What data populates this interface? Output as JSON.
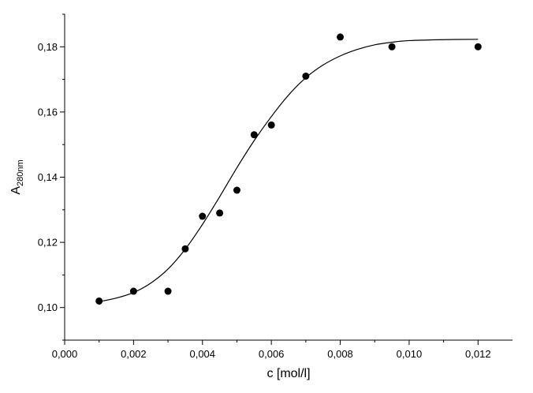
{
  "chart_data": {
    "type": "scatter",
    "xlabel": "c [mol/l]",
    "ylabel": {
      "main": "A",
      "sub": "280nm"
    },
    "xlim": [
      0.0,
      0.013
    ],
    "ylim": [
      0.09,
      0.19
    ],
    "x_ticks": [
      {
        "value": 0.0,
        "label": "0,000"
      },
      {
        "value": 0.002,
        "label": "0,002"
      },
      {
        "value": 0.004,
        "label": "0,004"
      },
      {
        "value": 0.006,
        "label": "0,006"
      },
      {
        "value": 0.008,
        "label": "0,008"
      },
      {
        "value": 0.01,
        "label": "0,010"
      },
      {
        "value": 0.012,
        "label": "0,012"
      }
    ],
    "y_ticks": [
      {
        "value": 0.1,
        "label": "0,10"
      },
      {
        "value": 0.12,
        "label": "0,12"
      },
      {
        "value": 0.14,
        "label": "0,14"
      },
      {
        "value": 0.16,
        "label": "0,16"
      },
      {
        "value": 0.18,
        "label": "0,18"
      }
    ],
    "grid": false,
    "series": [
      {
        "kind": "points",
        "color": "#000000",
        "x": [
          0.001,
          0.002,
          0.003,
          0.0035,
          0.004,
          0.0045,
          0.005,
          0.0055,
          0.006,
          0.007,
          0.008,
          0.0095,
          0.012
        ],
        "y": [
          0.102,
          0.105,
          0.105,
          0.118,
          0.128,
          0.129,
          0.136,
          0.153,
          0.156,
          0.171,
          0.183,
          0.18,
          0.18
        ]
      },
      {
        "kind": "fit_curve",
        "color": "#000000",
        "x": [
          0.001,
          0.0015,
          0.002,
          0.0025,
          0.003,
          0.0035,
          0.004,
          0.0045,
          0.005,
          0.0055,
          0.006,
          0.0065,
          0.007,
          0.0075,
          0.008,
          0.0085,
          0.009,
          0.0095,
          0.01,
          0.011,
          0.012
        ],
        "y": [
          0.1018,
          0.1029,
          0.1046,
          0.1075,
          0.1118,
          0.1179,
          0.1255,
          0.134,
          0.1429,
          0.1512,
          0.1586,
          0.1652,
          0.1705,
          0.1744,
          0.1772,
          0.1792,
          0.1806,
          0.1814,
          0.1819,
          0.1822,
          0.1823
        ]
      }
    ]
  }
}
